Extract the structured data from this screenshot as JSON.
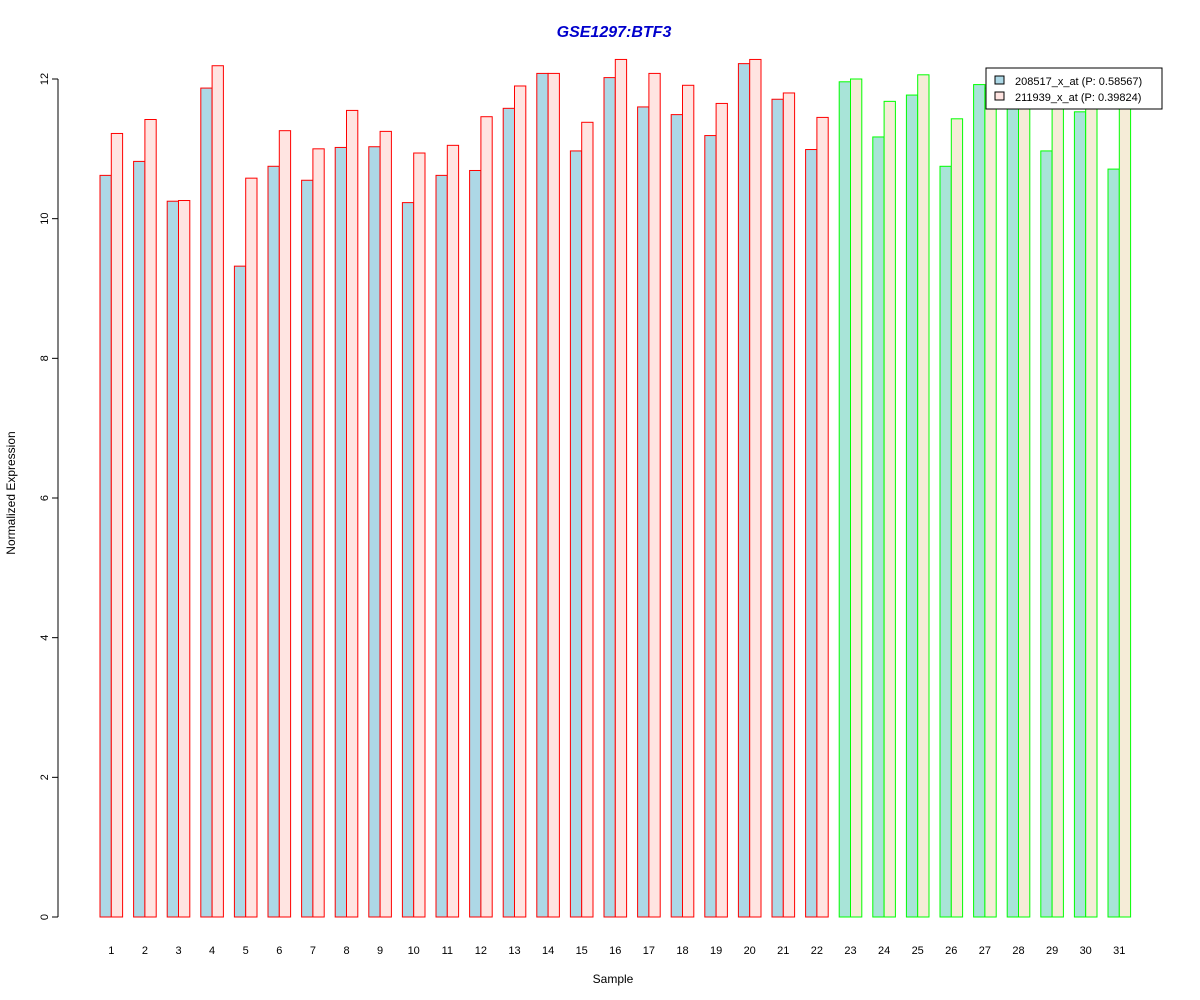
{
  "chart_data": {
    "type": "bar",
    "title": "GSE1297:BTF3",
    "xlabel": "Sample",
    "ylabel": "Normalized Expression",
    "ylim": [
      0,
      12
    ],
    "yticks": [
      0,
      2,
      4,
      6,
      8,
      10,
      12
    ],
    "categories": [
      "1",
      "2",
      "3",
      "4",
      "5",
      "6",
      "7",
      "8",
      "9",
      "10",
      "11",
      "12",
      "13",
      "14",
      "15",
      "16",
      "17",
      "18",
      "19",
      "20",
      "21",
      "22",
      "23",
      "24",
      "25",
      "26",
      "27",
      "28",
      "29",
      "30",
      "31"
    ],
    "series": [
      {
        "name": "208517_x_at (P: 0.58567)",
        "values": [
          10.62,
          10.82,
          10.25,
          11.87,
          9.32,
          10.75,
          10.55,
          11.02,
          11.03,
          10.23,
          10.62,
          10.69,
          11.58,
          12.08,
          10.97,
          12.02,
          11.6,
          11.49,
          11.19,
          12.22,
          11.71,
          10.99,
          11.96,
          11.17,
          11.77,
          10.75,
          11.92,
          11.72,
          10.97,
          11.53,
          10.71
        ]
      },
      {
        "name": "211939_x_at (P: 0.39824)",
        "values": [
          11.22,
          11.42,
          10.26,
          12.19,
          10.58,
          11.26,
          11.0,
          11.55,
          11.25,
          10.94,
          11.05,
          11.46,
          11.9,
          12.08,
          11.38,
          12.28,
          12.08,
          11.91,
          11.65,
          12.28,
          11.8,
          11.45,
          12.0,
          11.68,
          12.06,
          11.43,
          11.87,
          11.8,
          11.85,
          11.84,
          11.87
        ]
      }
    ],
    "group_outline": {
      "group_a_samples": 22,
      "group_a_color": "#ff0000",
      "group_b_color": "#00ff00"
    },
    "fill_colors": {
      "series1_group_a": "#add8e6",
      "series2_group_a": "#ffe4e1",
      "series1_group_b": "#a8e4d8",
      "series2_group_b": "#f5ecd7"
    },
    "title_color": "#0000cc",
    "legend_position": "top-right",
    "grid": false
  }
}
